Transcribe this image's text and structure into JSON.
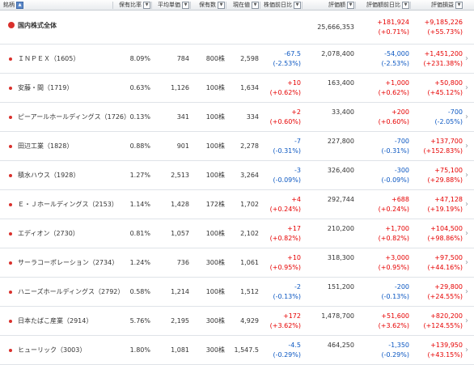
{
  "header": {
    "name": "銘柄",
    "ratio": "保有比率",
    "avg_price": "平均単価",
    "qty": "保有数",
    "price": "現在値",
    "day_change": "株価前日比",
    "value": "評価額",
    "value_change": "評価額前日比",
    "pnl": "評価損益"
  },
  "total": {
    "name": "国内株式全体",
    "value": "25,666,353",
    "value_change": "+181,924",
    "value_change_pct": "(+0.71%)",
    "pnl": "+9,185,226",
    "pnl_pct": "(+55.73%)"
  },
  "rows": [
    {
      "name": "ＩＮＰＥＸ（1605）",
      "ratio": "8.09%",
      "avg": "784",
      "qty": "800株",
      "price": "2,598",
      "chg": "-67.5",
      "chg_pct": "(-2.53%)",
      "value": "2,078,400",
      "vchg": "-54,000",
      "vchg_pct": "(-2.53%)",
      "pnl": "+1,451,200",
      "pnl_pct": "(+231.38%)"
    },
    {
      "name": "安藤・間（1719）",
      "ratio": "0.63%",
      "avg": "1,126",
      "qty": "100株",
      "price": "1,634",
      "chg": "+10",
      "chg_pct": "(+0.62%)",
      "value": "163,400",
      "vchg": "+1,000",
      "vchg_pct": "(+0.62%)",
      "pnl": "+50,800",
      "pnl_pct": "(+45.12%)"
    },
    {
      "name": "ピーアールホールディングス（1726）",
      "ratio": "0.13%",
      "avg": "341",
      "qty": "100株",
      "price": "334",
      "chg": "+2",
      "chg_pct": "(+0.60%)",
      "value": "33,400",
      "vchg": "+200",
      "vchg_pct": "(+0.60%)",
      "pnl": "-700",
      "pnl_pct": "(-2.05%)"
    },
    {
      "name": "田辺工業（1828）",
      "ratio": "0.88%",
      "avg": "901",
      "qty": "100株",
      "price": "2,278",
      "chg": "-7",
      "chg_pct": "(-0.31%)",
      "value": "227,800",
      "vchg": "-700",
      "vchg_pct": "(-0.31%)",
      "pnl": "+137,700",
      "pnl_pct": "(+152.83%)"
    },
    {
      "name": "積水ハウス（1928）",
      "ratio": "1.27%",
      "avg": "2,513",
      "qty": "100株",
      "price": "3,264",
      "chg": "-3",
      "chg_pct": "(-0.09%)",
      "value": "326,400",
      "vchg": "-300",
      "vchg_pct": "(-0.09%)",
      "pnl": "+75,100",
      "pnl_pct": "(+29.88%)"
    },
    {
      "name": "Ｅ・Ｊホールディングス（2153）",
      "ratio": "1.14%",
      "avg": "1,428",
      "qty": "172株",
      "price": "1,702",
      "chg": "+4",
      "chg_pct": "(+0.24%)",
      "value": "292,744",
      "vchg": "+688",
      "vchg_pct": "(+0.24%)",
      "pnl": "+47,128",
      "pnl_pct": "(+19.19%)"
    },
    {
      "name": "エディオン（2730）",
      "ratio": "0.81%",
      "avg": "1,057",
      "qty": "100株",
      "price": "2,102",
      "chg": "+17",
      "chg_pct": "(+0.82%)",
      "value": "210,200",
      "vchg": "+1,700",
      "vchg_pct": "(+0.82%)",
      "pnl": "+104,500",
      "pnl_pct": "(+98.86%)"
    },
    {
      "name": "サーラコーポレーション（2734）",
      "ratio": "1.24%",
      "avg": "736",
      "qty": "300株",
      "price": "1,061",
      "chg": "+10",
      "chg_pct": "(+0.95%)",
      "value": "318,300",
      "vchg": "+3,000",
      "vchg_pct": "(+0.95%)",
      "pnl": "+97,500",
      "pnl_pct": "(+44.16%)"
    },
    {
      "name": "ハニーズホールディングス（2792）",
      "ratio": "0.58%",
      "avg": "1,214",
      "qty": "100株",
      "price": "1,512",
      "chg": "-2",
      "chg_pct": "(-0.13%)",
      "value": "151,200",
      "vchg": "-200",
      "vchg_pct": "(-0.13%)",
      "pnl": "+29,800",
      "pnl_pct": "(+24.55%)"
    },
    {
      "name": "日本たばこ産業（2914）",
      "ratio": "5.76%",
      "avg": "2,195",
      "qty": "300株",
      "price": "4,929",
      "chg": "+172",
      "chg_pct": "(+3.62%)",
      "value": "1,478,700",
      "vchg": "+51,600",
      "vchg_pct": "(+3.62%)",
      "pnl": "+820,200",
      "pnl_pct": "(+124.55%)"
    },
    {
      "name": "ヒューリック（3003）",
      "ratio": "1.80%",
      "avg": "1,081",
      "qty": "300株",
      "price": "1,547.5",
      "chg": "-4.5",
      "chg_pct": "(-0.29%)",
      "value": "464,250",
      "vchg": "-1,350",
      "vchg_pct": "(-0.29%)",
      "pnl": "+139,950",
      "pnl_pct": "(+43.15%)"
    }
  ],
  "icons": {
    "sort_active": "sort-asc-icon",
    "sort": "dropdown-icon",
    "row_chevron": "chevron-right-icon",
    "bullet": "red-dot-icon"
  },
  "colors": {
    "positive": "#e60000",
    "negative": "#0b57c2",
    "bullet": "#d9302c"
  }
}
